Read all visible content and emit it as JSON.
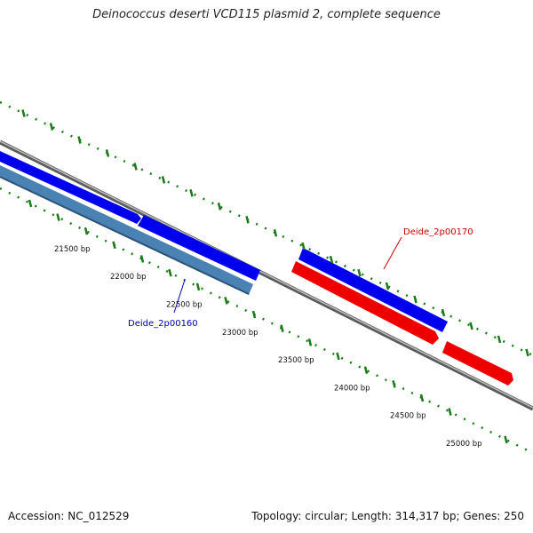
{
  "title": "Deinococcus deserti VCD115 plasmid 2, complete sequence",
  "footer": {
    "accession": "Accession: NC_012529",
    "summary": "Topology: circular; Length: 314,317 bp; Genes: 250"
  },
  "ticks": [
    {
      "label": "21500 bp"
    },
    {
      "label": "22000 bp"
    },
    {
      "label": "22500 bp"
    },
    {
      "label": "23000 bp"
    },
    {
      "label": "23500 bp"
    },
    {
      "label": "24000 bp"
    },
    {
      "label": "24500 bp"
    },
    {
      "label": "25000 bp"
    }
  ],
  "gene_labels": [
    {
      "label": "Deide_2p00170",
      "color": "#cc0000"
    },
    {
      "label": "Deide_2p00160",
      "color": "#0000aa"
    }
  ],
  "colors": {
    "backbone": "#777777",
    "forward_gene": "#0000ff",
    "reverse_gene": "#ff0000",
    "cds_feature": "#4a82b4",
    "tick_marks": "#1a7a1a"
  }
}
